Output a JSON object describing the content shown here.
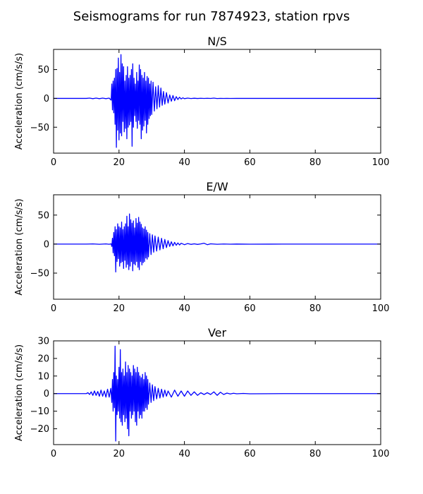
{
  "figure": {
    "title": "Seismograms for run 7874923, station rpvs"
  },
  "chart_data": [
    {
      "type": "line",
      "title": "N/S",
      "xlabel": "",
      "ylabel": "Acceleration (cm/s/s)",
      "xlim": [
        0,
        100
      ],
      "ylim": [
        -95,
        85
      ],
      "xticks": [
        0,
        20,
        40,
        60,
        80,
        100
      ],
      "yticks": [
        -50,
        0,
        50
      ],
      "grid": false,
      "line_color": "#0000ff",
      "series": [
        {
          "x": [
            0,
            10,
            11,
            12,
            13,
            14,
            15,
            16,
            17,
            17.6,
            17.8,
            18.0,
            18.2,
            18.4,
            18.6,
            18.8,
            19.0,
            19.2,
            19.4,
            19.6,
            19.8,
            20.0,
            20.2,
            20.4,
            20.6,
            20.8,
            21.0,
            21.2,
            21.4,
            21.6,
            21.8,
            22.0,
            22.2,
            22.4,
            22.6,
            22.8,
            23.0,
            23.2,
            23.4,
            23.6,
            23.8,
            24.0,
            24.2,
            24.4,
            24.6,
            24.8,
            25.0,
            25.2,
            25.4,
            25.6,
            25.8,
            26.0,
            26.2,
            26.4,
            26.6,
            26.8,
            27.0,
            27.2,
            27.4,
            27.6,
            27.8,
            28.0,
            28.2,
            28.4,
            28.6,
            28.8,
            29.0,
            29.2,
            29.4,
            29.6,
            29.8,
            30.0,
            30.4,
            30.8,
            31.2,
            31.6,
            32.0,
            32.4,
            32.8,
            33.2,
            33.6,
            34.0,
            34.5,
            35.0,
            35.5,
            36.0,
            36.5,
            37.0,
            37.5,
            38.0,
            38.5,
            39.0,
            39.5,
            40.0,
            41,
            42,
            43,
            44,
            45,
            46,
            47,
            48,
            49,
            50,
            51,
            52,
            53,
            54,
            56,
            58,
            60,
            70,
            80,
            90,
            100
          ],
          "y": [
            0,
            0,
            0.5,
            -0.5,
            0.5,
            -0.5,
            0.5,
            -0.5,
            0.5,
            -3,
            25,
            -20,
            30,
            -25,
            35,
            -45,
            50,
            -85,
            52,
            -55,
            70,
            -72,
            45,
            -60,
            76,
            -65,
            60,
            -40,
            55,
            -58,
            30,
            -52,
            40,
            -70,
            55,
            -50,
            35,
            -46,
            40,
            -40,
            50,
            -83,
            60,
            -50,
            35,
            -30,
            25,
            -40,
            45,
            -52,
            30,
            -38,
            58,
            -45,
            50,
            -70,
            40,
            -55,
            35,
            -48,
            45,
            -38,
            30,
            -60,
            38,
            -45,
            35,
            -35,
            25,
            -30,
            30,
            -28,
            28,
            -22,
            20,
            -18,
            22,
            -15,
            18,
            -12,
            12,
            -10,
            10,
            -8,
            6,
            -5,
            5,
            -4,
            3,
            -2,
            2,
            -1,
            1,
            -0.5,
            0.5,
            -0.3,
            0.3,
            -0.2,
            0.2,
            -0.1,
            0.2,
            -0.1,
            0.5,
            -0.3,
            0.1,
            -0.1,
            0.1,
            -0.1,
            0,
            0,
            0,
            0,
            0,
            0,
            0
          ]
        }
      ]
    },
    {
      "type": "line",
      "title": "E/W",
      "xlabel": "",
      "ylabel": "Acceleration (cm/s/s)",
      "xlim": [
        0,
        100
      ],
      "ylim": [
        -95,
        85
      ],
      "xticks": [
        0,
        20,
        40,
        60,
        80,
        100
      ],
      "yticks": [
        -50,
        0,
        50
      ],
      "grid": false,
      "line_color": "#0000ff",
      "series": [
        {
          "x": [
            0,
            10,
            12,
            14,
            16,
            17,
            17.6,
            17.8,
            18.0,
            18.2,
            18.4,
            18.6,
            18.8,
            19.0,
            19.2,
            19.4,
            19.6,
            19.8,
            20.0,
            20.2,
            20.4,
            20.6,
            20.8,
            21.0,
            21.2,
            21.4,
            21.6,
            21.8,
            22.0,
            22.2,
            22.4,
            22.6,
            22.8,
            23.0,
            23.2,
            23.4,
            23.6,
            23.8,
            24.0,
            24.2,
            24.4,
            24.6,
            24.8,
            25.0,
            25.2,
            25.4,
            25.6,
            25.8,
            26.0,
            26.2,
            26.4,
            26.6,
            26.8,
            27.0,
            27.2,
            27.4,
            27.6,
            27.8,
            28.0,
            28.2,
            28.4,
            28.6,
            28.8,
            29.0,
            29.4,
            29.8,
            30.2,
            30.6,
            31.0,
            31.5,
            32.0,
            32.5,
            33.0,
            33.5,
            34.0,
            34.5,
            35.0,
            35.5,
            36.0,
            36.5,
            37.0,
            37.5,
            38.0,
            38.5,
            39.0,
            40,
            41,
            42,
            43,
            44,
            45,
            46,
            47,
            48,
            50,
            52,
            54,
            56,
            60,
            70,
            80,
            90,
            100
          ],
          "y": [
            0,
            0,
            0.3,
            -0.3,
            0.3,
            -0.3,
            0.5,
            -4,
            10,
            -15,
            20,
            -20,
            30,
            -48,
            25,
            -30,
            35,
            -25,
            30,
            -38,
            28,
            -32,
            38,
            -30,
            25,
            -42,
            30,
            -28,
            35,
            -40,
            48,
            -35,
            30,
            -44,
            52,
            -38,
            42,
            -30,
            36,
            -46,
            40,
            -34,
            28,
            -36,
            44,
            -30,
            36,
            -40,
            46,
            -44,
            38,
            -30,
            34,
            -36,
            28,
            -32,
            26,
            -30,
            30,
            -24,
            24,
            -26,
            20,
            -22,
            18,
            -18,
            16,
            -14,
            14,
            -12,
            12,
            -10,
            10,
            -8,
            8,
            -6,
            6,
            -4,
            4,
            -3,
            3,
            -2,
            2,
            -1.5,
            1.5,
            -1,
            1,
            -0.5,
            0.5,
            -0.5,
            0.3,
            1.5,
            -1,
            0.5,
            -0.3,
            0.2,
            -0.1,
            0.1,
            -0.1,
            0,
            0,
            0,
            0
          ]
        }
      ]
    },
    {
      "type": "line",
      "title": "Ver",
      "xlabel": "",
      "ylabel": "Acceleration (cm/s/s)",
      "xlim": [
        0,
        100
      ],
      "ylim": [
        -29,
        30
      ],
      "xticks": [
        0,
        20,
        40,
        60,
        80,
        100
      ],
      "yticks": [
        -20,
        -10,
        0,
        10,
        20,
        30
      ],
      "grid": false,
      "line_color": "#0000ff",
      "series": [
        {
          "x": [
            0,
            10,
            10.5,
            11,
            11.5,
            12,
            12.5,
            13,
            13.5,
            14,
            14.5,
            15,
            15.5,
            16,
            16.5,
            17,
            17.5,
            17.8,
            18.0,
            18.2,
            18.4,
            18.6,
            18.8,
            19.0,
            19.2,
            19.4,
            19.6,
            19.8,
            20.0,
            20.2,
            20.4,
            20.6,
            20.8,
            21.0,
            21.2,
            21.4,
            21.6,
            21.8,
            22.0,
            22.2,
            22.4,
            22.6,
            22.8,
            23.0,
            23.2,
            23.4,
            23.6,
            23.8,
            24.0,
            24.2,
            24.4,
            24.6,
            24.8,
            25.0,
            25.2,
            25.4,
            25.6,
            25.8,
            26.0,
            26.2,
            26.4,
            26.6,
            26.8,
            27.0,
            27.2,
            27.4,
            27.6,
            27.8,
            28.0,
            28.2,
            28.4,
            28.6,
            28.8,
            29.0,
            29.4,
            29.8,
            30.2,
            30.6,
            31.0,
            31.5,
            32.0,
            32.5,
            33.0,
            33.5,
            34.0,
            34.5,
            35.0,
            36,
            37,
            38,
            39,
            40,
            41,
            42,
            43,
            44,
            45,
            46,
            47,
            48,
            49,
            50,
            51,
            52,
            53,
            54,
            55,
            56,
            58,
            60,
            70,
            80,
            90,
            100
          ],
          "y": [
            0,
            0,
            0.5,
            -0.5,
            1,
            -1,
            1.5,
            -1,
            1.2,
            -1.5,
            2,
            -1.5,
            1.5,
            -2,
            2.5,
            -2,
            3,
            -5,
            8,
            -10,
            12,
            -8,
            27,
            -27,
            10,
            -12,
            8,
            -10,
            15,
            -14,
            25,
            -16,
            12,
            -18,
            14,
            -12,
            10,
            -16,
            18,
            -14,
            12,
            -20,
            16,
            -24,
            14,
            -10,
            12,
            -14,
            10,
            -12,
            16,
            -10,
            14,
            -16,
            12,
            -18,
            15,
            -10,
            12,
            -14,
            10,
            -12,
            9,
            -14,
            11,
            -10,
            8,
            -10,
            12,
            -8,
            10,
            -9,
            8,
            -6,
            6,
            -5,
            5,
            -4,
            4,
            -3,
            3,
            -2.5,
            2.5,
            -2,
            2,
            -1.5,
            1.5,
            -2,
            2,
            -1.5,
            1.5,
            -1.5,
            1.5,
            -1,
            1,
            -1,
            0.5,
            -0.5,
            0.5,
            -0.5,
            1,
            -1,
            0.8,
            -0.5,
            0.3,
            -0.2,
            0.2,
            -0.1,
            0.1,
            -0.1,
            0,
            0,
            0,
            0
          ]
        }
      ]
    }
  ]
}
